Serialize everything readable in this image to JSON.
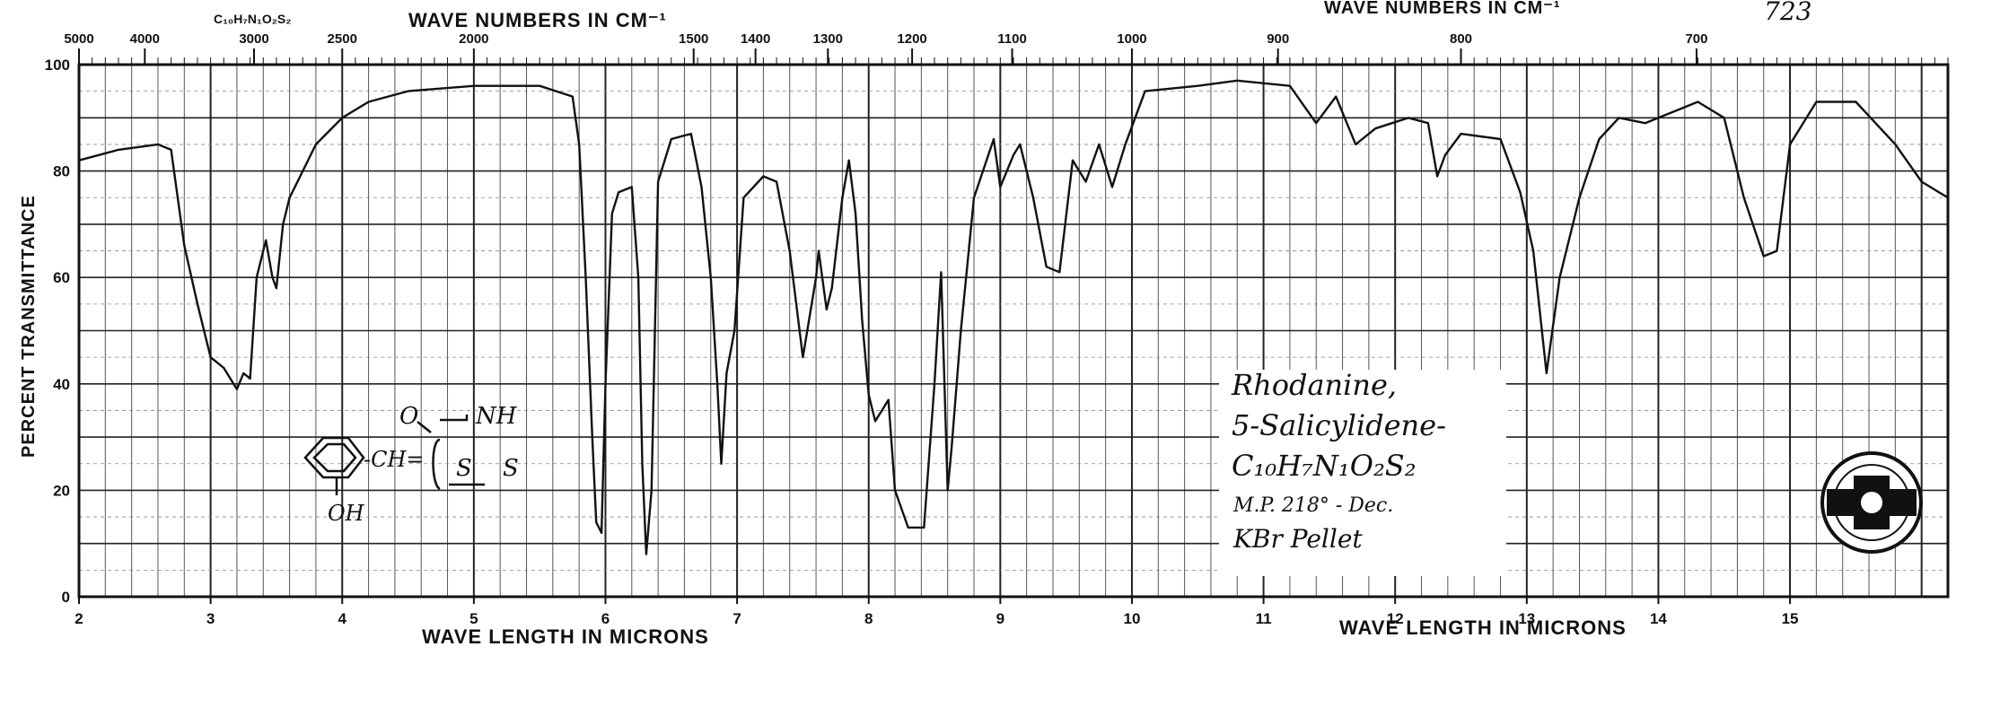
{
  "header": {
    "formula_top": "C₁₀H₇N₁O₂S₂",
    "wave_numbers_title_left": "WAVE NUMBERS IN CM⁻¹",
    "wave_numbers_title_right": "WAVE NUMBERS IN CM⁻¹",
    "catalog_number": "723"
  },
  "sample_card": {
    "line1": "Rhodanine,",
    "line2": "5-Salicylidene-",
    "line3": "C₁₀H₇N₁O₂S₂",
    "line4": "M.P. 218° - Dec.",
    "line5": "KBr Pellet"
  },
  "structure": {
    "o_label": "O",
    "nh_label": "NH",
    "ch_label": "-CH=",
    "s_ring_label": "S",
    "s_exo_label": "S",
    "oh_label": "OH"
  },
  "chart_data": {
    "type": "line",
    "xlabel": "WAVE LENGTH IN MICRONS",
    "xlabel_right": "WAVE LENGTH IN MICRONS",
    "ylabel": "PERCENT TRANSMITTANCE",
    "xlim": [
      2,
      16.2
    ],
    "ylim": [
      0,
      100
    ],
    "grid": true,
    "x_ticks": [
      "2",
      "3",
      "4",
      "5",
      "6",
      "7",
      "8",
      "9",
      "10",
      "11",
      "12",
      "13",
      "14",
      "15"
    ],
    "y_ticks": [
      "0",
      "20",
      "40",
      "60",
      "80",
      "100"
    ],
    "top_ticks": [
      {
        "label": "5000",
        "micron": 2.0
      },
      {
        "label": "4000",
        "micron": 2.5
      },
      {
        "label": "3000",
        "micron": 3.33
      },
      {
        "label": "2500",
        "micron": 4.0
      },
      {
        "label": "2000",
        "micron": 5.0
      },
      {
        "label": "1500",
        "micron": 6.67
      },
      {
        "label": "1400",
        "micron": 7.14
      },
      {
        "label": "1300",
        "micron": 7.69
      },
      {
        "label": "1200",
        "micron": 8.33
      },
      {
        "label": "1100",
        "micron": 9.09
      },
      {
        "label": "1000",
        "micron": 10.0
      },
      {
        "label": "900",
        "micron": 11.11
      },
      {
        "label": "800",
        "micron": 12.5
      },
      {
        "label": "700",
        "micron": 14.29
      }
    ],
    "series": [
      {
        "points": [
          [
            2.0,
            82
          ],
          [
            2.3,
            84
          ],
          [
            2.6,
            85
          ],
          [
            2.7,
            84
          ],
          [
            2.8,
            66
          ],
          [
            2.9,
            55
          ],
          [
            3.0,
            45
          ],
          [
            3.1,
            43
          ],
          [
            3.15,
            41
          ],
          [
            3.2,
            39
          ],
          [
            3.25,
            42
          ],
          [
            3.3,
            41
          ],
          [
            3.35,
            60
          ],
          [
            3.42,
            67
          ],
          [
            3.47,
            60
          ],
          [
            3.5,
            58
          ],
          [
            3.55,
            70
          ],
          [
            3.6,
            75
          ],
          [
            3.7,
            80
          ],
          [
            3.8,
            85
          ],
          [
            4.0,
            90
          ],
          [
            4.2,
            93
          ],
          [
            4.5,
            95
          ],
          [
            5.0,
            96
          ],
          [
            5.5,
            96
          ],
          [
            5.75,
            94
          ],
          [
            5.8,
            85
          ],
          [
            5.85,
            60
          ],
          [
            5.9,
            30
          ],
          [
            5.93,
            14
          ],
          [
            5.97,
            12
          ],
          [
            6.0,
            40
          ],
          [
            6.05,
            72
          ],
          [
            6.1,
            76
          ],
          [
            6.2,
            77
          ],
          [
            6.25,
            60
          ],
          [
            6.28,
            25
          ],
          [
            6.31,
            8
          ],
          [
            6.35,
            20
          ],
          [
            6.4,
            78
          ],
          [
            6.5,
            86
          ],
          [
            6.65,
            87
          ],
          [
            6.73,
            77
          ],
          [
            6.8,
            60
          ],
          [
            6.85,
            40
          ],
          [
            6.88,
            25
          ],
          [
            6.92,
            42
          ],
          [
            6.98,
            50
          ],
          [
            7.05,
            75
          ],
          [
            7.2,
            79
          ],
          [
            7.3,
            78
          ],
          [
            7.4,
            65
          ],
          [
            7.5,
            45
          ],
          [
            7.6,
            60
          ],
          [
            7.62,
            65
          ],
          [
            7.68,
            54
          ],
          [
            7.72,
            58
          ],
          [
            7.8,
            75
          ],
          [
            7.85,
            82
          ],
          [
            7.9,
            72
          ],
          [
            7.95,
            52
          ],
          [
            8.0,
            38
          ],
          [
            8.05,
            33
          ],
          [
            8.1,
            35
          ],
          [
            8.15,
            37
          ],
          [
            8.2,
            20
          ],
          [
            8.3,
            13
          ],
          [
            8.42,
            13
          ],
          [
            8.5,
            40
          ],
          [
            8.55,
            61
          ],
          [
            8.6,
            20
          ],
          [
            8.63,
            28
          ],
          [
            8.7,
            50
          ],
          [
            8.8,
            75
          ],
          [
            8.95,
            86
          ],
          [
            9.0,
            77
          ],
          [
            9.1,
            83
          ],
          [
            9.15,
            85
          ],
          [
            9.25,
            75
          ],
          [
            9.35,
            62
          ],
          [
            9.45,
            61
          ],
          [
            9.55,
            82
          ],
          [
            9.65,
            78
          ],
          [
            9.75,
            85
          ],
          [
            9.85,
            77
          ],
          [
            9.95,
            85
          ],
          [
            10.1,
            95
          ],
          [
            10.5,
            96
          ],
          [
            10.8,
            97
          ],
          [
            11.2,
            96
          ],
          [
            11.4,
            89
          ],
          [
            11.55,
            94
          ],
          [
            11.7,
            85
          ],
          [
            11.85,
            88
          ],
          [
            12.1,
            90
          ],
          [
            12.25,
            89
          ],
          [
            12.32,
            79
          ],
          [
            12.38,
            83
          ],
          [
            12.5,
            87
          ],
          [
            12.8,
            86
          ],
          [
            12.95,
            76
          ],
          [
            13.05,
            65
          ],
          [
            13.15,
            42
          ],
          [
            13.25,
            60
          ],
          [
            13.4,
            75
          ],
          [
            13.55,
            86
          ],
          [
            13.7,
            90
          ],
          [
            13.9,
            89
          ],
          [
            14.0,
            90
          ],
          [
            14.3,
            93
          ],
          [
            14.5,
            90
          ],
          [
            14.65,
            75
          ],
          [
            14.8,
            64
          ],
          [
            14.9,
            65
          ],
          [
            15.0,
            85
          ],
          [
            15.2,
            93
          ],
          [
            15.5,
            93
          ],
          [
            15.8,
            85
          ],
          [
            16.0,
            78
          ],
          [
            16.2,
            75
          ]
        ]
      }
    ]
  }
}
